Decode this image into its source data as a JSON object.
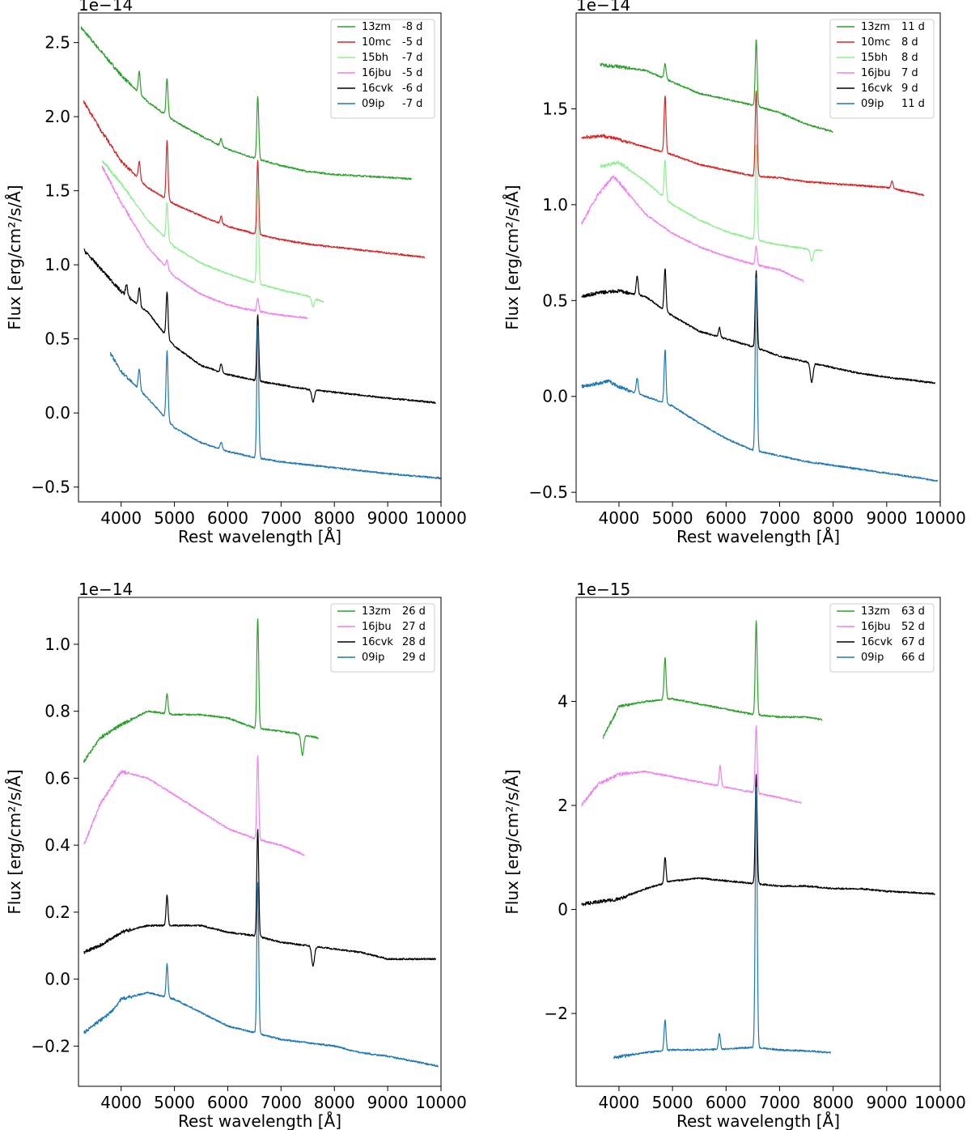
{
  "chart_data": [
    {
      "type": "line",
      "panel": "top-left",
      "offset_label": "1e−14",
      "xlabel": "Rest wavelength [Å]",
      "ylabel": "Flux [erg/cm²/s/Å]",
      "xlim": [
        3200,
        10000
      ],
      "ylim": [
        -0.6,
        2.7
      ],
      "xticks": [
        4000,
        5000,
        6000,
        7000,
        8000,
        9000,
        10000
      ],
      "xtick_labels": [
        "4000",
        "5000",
        "6000",
        "7000",
        "8000",
        "9000",
        "10000"
      ],
      "yticks": [
        -0.5,
        0.0,
        0.5,
        1.0,
        1.5,
        2.0,
        2.5
      ],
      "ytick_labels": [
        "−0.5",
        "0.0",
        "0.5",
        "1.0",
        "1.5",
        "2.0",
        "2.5"
      ],
      "legend_position": "top-right",
      "series": [
        {
          "name": "13zm",
          "epoch": "-8 d",
          "color": "#2ca02c",
          "x": [
            3250,
            3600,
            4000,
            4500,
            5000,
            5500,
            6000,
            6500,
            7000,
            7500,
            8000,
            8500,
            9000,
            9450
          ],
          "y": [
            2.6,
            2.45,
            2.28,
            2.1,
            1.97,
            1.87,
            1.78,
            1.72,
            1.67,
            1.63,
            1.61,
            1.6,
            1.59,
            1.58
          ],
          "lines": [
            [
              4340,
              0.15
            ],
            [
              4861,
              0.25
            ],
            [
              5876,
              0.05
            ],
            [
              6563,
              0.42
            ]
          ]
        },
        {
          "name": "10mc",
          "epoch": "-5 d",
          "color": "#d62728",
          "x": [
            3300,
            3600,
            4000,
            4500,
            5000,
            5500,
            6000,
            6500,
            7000,
            7500,
            8000,
            8500,
            9000,
            9700
          ],
          "y": [
            2.1,
            1.92,
            1.7,
            1.52,
            1.41,
            1.33,
            1.26,
            1.21,
            1.17,
            1.14,
            1.12,
            1.1,
            1.08,
            1.05
          ],
          "lines": [
            [
              4340,
              0.12
            ],
            [
              4861,
              0.4
            ],
            [
              5876,
              0.05
            ],
            [
              6563,
              0.5
            ]
          ]
        },
        {
          "name": "15bh",
          "epoch": "-7 d",
          "color": "#90ee90",
          "x": [
            3650,
            4000,
            4500,
            5000,
            5500,
            6000,
            6500,
            7000,
            7500,
            7800
          ],
          "y": [
            1.7,
            1.55,
            1.3,
            1.12,
            1.01,
            0.94,
            0.88,
            0.83,
            0.79,
            0.75
          ],
          "lines": [
            [
              4861,
              0.25
            ],
            [
              6563,
              0.65
            ],
            [
              7600,
              -0.06
            ]
          ]
        },
        {
          "name": "16jbu",
          "epoch": "-5 d",
          "color": "#ee82ee",
          "x": [
            3650,
            4000,
            4500,
            5000,
            5500,
            6000,
            6500,
            7000,
            7500
          ],
          "y": [
            1.66,
            1.42,
            1.12,
            0.92,
            0.8,
            0.73,
            0.69,
            0.66,
            0.64
          ],
          "lines": [
            [
              4861,
              0.06
            ],
            [
              6563,
              0.09
            ]
          ]
        },
        {
          "name": "16cvk",
          "epoch": "-6 d",
          "color": "#000000",
          "x": [
            3300,
            3600,
            4000,
            4500,
            5000,
            5500,
            6000,
            6500,
            7000,
            7500,
            8000,
            8500,
            9000,
            9900
          ],
          "y": [
            1.1,
            0.98,
            0.82,
            0.68,
            0.45,
            0.32,
            0.26,
            0.22,
            0.19,
            0.16,
            0.14,
            0.12,
            0.1,
            0.07
          ],
          "lines": [
            [
              4101,
              0.08
            ],
            [
              4340,
              0.12
            ],
            [
              4861,
              0.3
            ],
            [
              5876,
              0.06
            ],
            [
              6563,
              0.45
            ],
            [
              7600,
              -0.08
            ]
          ]
        },
        {
          "name": "09ip",
          "epoch": "-7 d",
          "color": "#1f77b4",
          "x": [
            3800,
            4000,
            4500,
            5000,
            5500,
            6000,
            6500,
            7000,
            7500,
            8000,
            8500,
            9000,
            10000
          ],
          "y": [
            0.4,
            0.28,
            0.1,
            -0.1,
            -0.2,
            -0.26,
            -0.3,
            -0.33,
            -0.35,
            -0.37,
            -0.39,
            -0.41,
            -0.44
          ],
          "lines": [
            [
              4340,
              0.14
            ],
            [
              4861,
              0.46
            ],
            [
              5876,
              0.05
            ],
            [
              6563,
              0.9
            ]
          ]
        }
      ]
    },
    {
      "type": "line",
      "panel": "top-right",
      "offset_label": "1e−14",
      "xlabel": "Rest wavelength [Å]",
      "ylabel": "Flux [erg/cm²/s/Å]",
      "xlim": [
        3200,
        10000
      ],
      "ylim": [
        -0.55,
        2.0
      ],
      "xticks": [
        4000,
        5000,
        6000,
        7000,
        8000,
        9000,
        10000
      ],
      "xtick_labels": [
        "4000",
        "5000",
        "6000",
        "7000",
        "8000",
        "9000",
        "10000"
      ],
      "yticks": [
        -0.5,
        0.0,
        0.5,
        1.0,
        1.5
      ],
      "ytick_labels": [
        "−0.5",
        "0.0",
        "0.5",
        "1.0",
        "1.5"
      ],
      "legend_position": "top-right",
      "series": [
        {
          "name": "13zm",
          "epoch": "11 d",
          "color": "#2ca02c",
          "x": [
            3650,
            4000,
            4500,
            5000,
            5500,
            6000,
            6500,
            7000,
            7500,
            8000
          ],
          "y": [
            1.73,
            1.72,
            1.7,
            1.64,
            1.58,
            1.55,
            1.52,
            1.48,
            1.42,
            1.38
          ],
          "lines": [
            [
              4861,
              0.08
            ],
            [
              6563,
              0.35
            ]
          ]
        },
        {
          "name": "10mc",
          "epoch": "8 d",
          "color": "#d62728",
          "x": [
            3300,
            3700,
            4000,
            4500,
            5000,
            5500,
            6000,
            6500,
            7000,
            7500,
            8000,
            8500,
            9000,
            9700
          ],
          "y": [
            1.35,
            1.36,
            1.34,
            1.3,
            1.26,
            1.21,
            1.18,
            1.15,
            1.14,
            1.12,
            1.11,
            1.1,
            1.09,
            1.05
          ],
          "lines": [
            [
              4861,
              0.3
            ],
            [
              6563,
              0.45
            ],
            [
              9100,
              0.04
            ]
          ]
        },
        {
          "name": "15bh",
          "epoch": "8 d",
          "color": "#90ee90",
          "x": [
            3650,
            4000,
            4500,
            5000,
            5500,
            6000,
            6500,
            7000,
            7500,
            7800
          ],
          "y": [
            1.2,
            1.22,
            1.12,
            1.0,
            0.92,
            0.86,
            0.82,
            0.79,
            0.77,
            0.76
          ],
          "lines": [
            [
              4861,
              0.2
            ],
            [
              6563,
              0.5
            ],
            [
              7600,
              -0.06
            ]
          ]
        },
        {
          "name": "16jbu",
          "epoch": "7 d",
          "color": "#ee82ee",
          "x": [
            3300,
            3600,
            3900,
            4200,
            4500,
            5000,
            5500,
            6000,
            6500,
            7000,
            7450
          ],
          "y": [
            0.9,
            1.05,
            1.15,
            1.05,
            0.95,
            0.85,
            0.78,
            0.73,
            0.69,
            0.66,
            0.6
          ],
          "lines": [
            [
              6563,
              0.1
            ]
          ]
        },
        {
          "name": "16cvk",
          "epoch": "9 d",
          "color": "#000000",
          "x": [
            3300,
            3600,
            4000,
            4500,
            5000,
            5500,
            6000,
            6500,
            7000,
            7500,
            8000,
            8500,
            9000,
            9900
          ],
          "y": [
            0.52,
            0.54,
            0.55,
            0.52,
            0.42,
            0.34,
            0.3,
            0.26,
            0.21,
            0.18,
            0.15,
            0.12,
            0.1,
            0.07
          ],
          "lines": [
            [
              4340,
              0.1
            ],
            [
              4861,
              0.22
            ],
            [
              5876,
              0.05
            ],
            [
              6563,
              0.4
            ],
            [
              7600,
              -0.1
            ]
          ]
        },
        {
          "name": "09ip",
          "epoch": "11 d",
          "color": "#1f77b4",
          "x": [
            3300,
            3800,
            4000,
            4500,
            5000,
            5500,
            6000,
            6500,
            7000,
            7500,
            8000,
            8500,
            9000,
            9950
          ],
          "y": [
            0.05,
            0.08,
            0.05,
            0.0,
            -0.05,
            -0.14,
            -0.22,
            -0.28,
            -0.31,
            -0.34,
            -0.36,
            -0.38,
            -0.4,
            -0.44
          ],
          "lines": [
            [
              4340,
              0.08
            ],
            [
              4861,
              0.28
            ],
            [
              6563,
              0.9
            ]
          ]
        }
      ]
    },
    {
      "type": "line",
      "panel": "bottom-left",
      "offset_label": "1e−14",
      "xlabel": "Rest wavelength [Å]",
      "ylabel": "Flux [erg/cm²/s/Å]",
      "xlim": [
        3200,
        10000
      ],
      "ylim": [
        -0.32,
        1.14
      ],
      "xticks": [
        4000,
        5000,
        6000,
        7000,
        8000,
        9000,
        10000
      ],
      "xtick_labels": [
        "4000",
        "5000",
        "6000",
        "7000",
        "8000",
        "9000",
        "10000"
      ],
      "yticks": [
        -0.2,
        0.0,
        0.2,
        0.4,
        0.6,
        0.8,
        1.0
      ],
      "ytick_labels": [
        "−0.2",
        "0.0",
        "0.2",
        "0.4",
        "0.6",
        "0.8",
        "1.0"
      ],
      "legend_position": "top-right",
      "series": [
        {
          "name": "13zm",
          "epoch": "26 d",
          "color": "#2ca02c",
          "x": [
            3300,
            3600,
            4000,
            4500,
            5000,
            5500,
            6000,
            6500,
            7000,
            7400,
            7700
          ],
          "y": [
            0.65,
            0.72,
            0.76,
            0.8,
            0.79,
            0.79,
            0.78,
            0.75,
            0.74,
            0.73,
            0.72
          ],
          "lines": [
            [
              4861,
              0.06
            ],
            [
              6563,
              0.33
            ],
            [
              7400,
              -0.06
            ]
          ]
        },
        {
          "name": "16jbu",
          "epoch": "27 d",
          "color": "#ee82ee",
          "x": [
            3300,
            3600,
            4000,
            4500,
            5000,
            5500,
            6000,
            6500,
            7000,
            7450
          ],
          "y": [
            0.4,
            0.52,
            0.62,
            0.6,
            0.55,
            0.5,
            0.45,
            0.42,
            0.4,
            0.37
          ],
          "lines": [
            [
              6563,
              0.25
            ]
          ]
        },
        {
          "name": "16cvk",
          "epoch": "28 d",
          "color": "#000000",
          "x": [
            3300,
            3600,
            4000,
            4500,
            5000,
            5500,
            6000,
            6500,
            7000,
            7500,
            8000,
            8500,
            9000,
            9900
          ],
          "y": [
            0.08,
            0.1,
            0.14,
            0.16,
            0.16,
            0.16,
            0.14,
            0.13,
            0.11,
            0.1,
            0.09,
            0.08,
            0.06,
            0.06
          ],
          "lines": [
            [
              4861,
              0.09
            ],
            [
              6563,
              0.32
            ],
            [
              7600,
              -0.06
            ]
          ]
        },
        {
          "name": "09ip",
          "epoch": "29 d",
          "color": "#1f77b4",
          "x": [
            3300,
            3800,
            4000,
            4500,
            5000,
            5500,
            6000,
            6500,
            7000,
            7500,
            8000,
            8500,
            9000,
            9950
          ],
          "y": [
            -0.16,
            -0.1,
            -0.06,
            -0.04,
            -0.06,
            -0.1,
            -0.14,
            -0.16,
            -0.18,
            -0.19,
            -0.2,
            -0.22,
            -0.23,
            -0.26
          ],
          "lines": [
            [
              4861,
              0.1
            ],
            [
              6563,
              0.45
            ]
          ]
        }
      ]
    },
    {
      "type": "line",
      "panel": "bottom-right",
      "offset_label": "1e−15",
      "xlabel": "Rest wavelength [Å]",
      "ylabel": "Flux [erg/cm²/s/Å]",
      "xlim": [
        3200,
        10000
      ],
      "ylim": [
        -3.4,
        6.0
      ],
      "xticks": [
        4000,
        5000,
        6000,
        7000,
        8000,
        9000,
        10000
      ],
      "xtick_labels": [
        "4000",
        "5000",
        "6000",
        "7000",
        "8000",
        "9000",
        "10000"
      ],
      "yticks": [
        -2,
        0,
        2,
        4
      ],
      "ytick_labels": [
        "−2",
        "0",
        "2",
        "4"
      ],
      "legend_position": "top-right",
      "series": [
        {
          "name": "13zm",
          "epoch": "63 d",
          "color": "#2ca02c",
          "x": [
            3700,
            4000,
            4500,
            5000,
            5500,
            6000,
            6500,
            7000,
            7500,
            7800
          ],
          "y": [
            3.3,
            3.9,
            4.0,
            4.05,
            3.95,
            3.85,
            3.75,
            3.7,
            3.7,
            3.65
          ],
          "lines": [
            [
              4861,
              0.8
            ],
            [
              6563,
              1.8
            ]
          ]
        },
        {
          "name": "16jbu",
          "epoch": "52 d",
          "color": "#ee82ee",
          "x": [
            3300,
            3600,
            4000,
            4500,
            5000,
            5500,
            6000,
            6500,
            7000,
            7400
          ],
          "y": [
            2.0,
            2.4,
            2.6,
            2.65,
            2.55,
            2.45,
            2.35,
            2.25,
            2.15,
            2.05
          ],
          "lines": [
            [
              5890,
              0.4
            ],
            [
              6563,
              1.3
            ]
          ]
        },
        {
          "name": "16cvk",
          "epoch": "67 d",
          "color": "#000000",
          "x": [
            3300,
            4000,
            4500,
            5000,
            5500,
            6000,
            6500,
            7000,
            7500,
            8000,
            8500,
            9000,
            9900
          ],
          "y": [
            0.1,
            0.2,
            0.4,
            0.55,
            0.6,
            0.55,
            0.5,
            0.45,
            0.45,
            0.4,
            0.4,
            0.35,
            0.3
          ],
          "lines": [
            [
              4861,
              0.5
            ],
            [
              6563,
              2.1
            ]
          ]
        },
        {
          "name": "09ip",
          "epoch": "66 d",
          "color": "#1f77b4",
          "x": [
            3900,
            4500,
            5000,
            5500,
            6000,
            6500,
            7000,
            7500,
            7950
          ],
          "y": [
            -2.85,
            -2.75,
            -2.7,
            -2.7,
            -2.68,
            -2.65,
            -2.7,
            -2.72,
            -2.75
          ],
          "lines": [
            [
              4861,
              0.6
            ],
            [
              5876,
              0.3
            ],
            [
              6563,
              5.0
            ]
          ]
        }
      ]
    }
  ]
}
